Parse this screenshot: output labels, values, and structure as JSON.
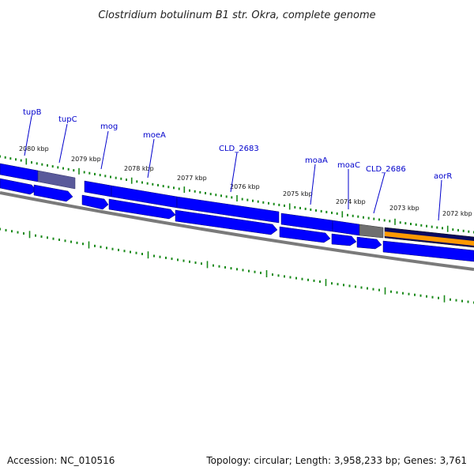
{
  "title": "Clostridium botulinum B1 str. Okra, complete genome",
  "footer": {
    "accession": "Accession: NC_010516",
    "summary": "Topology: circular; Length: 3,958,233 bp; Genes: 3,761"
  },
  "scale_labels": [
    "2080 kbp",
    "2079 kbp",
    "2078 kbp",
    "2077 kbp",
    "2076 kbp",
    "2075 kbp",
    "2074 kbp",
    "2073 kbp",
    "2072 kbp"
  ],
  "gene_labels": [
    "tupB",
    "tupC",
    "mog",
    "moeA",
    "CLD_2683",
    "moaA",
    "moaC",
    "CLD_2686",
    "aorR"
  ],
  "colors": {
    "gene_blue": "#0000ff",
    "gene_grey_purple": "#5a5a9a",
    "gene_grey": "#6f6f6f",
    "gene_dark_navy": "#0a0a60",
    "gene_orange": "#ff9900",
    "backbone": "#7a7a7a",
    "tick_green": "#1a8a1a",
    "label_blue": "#0000cc"
  }
}
